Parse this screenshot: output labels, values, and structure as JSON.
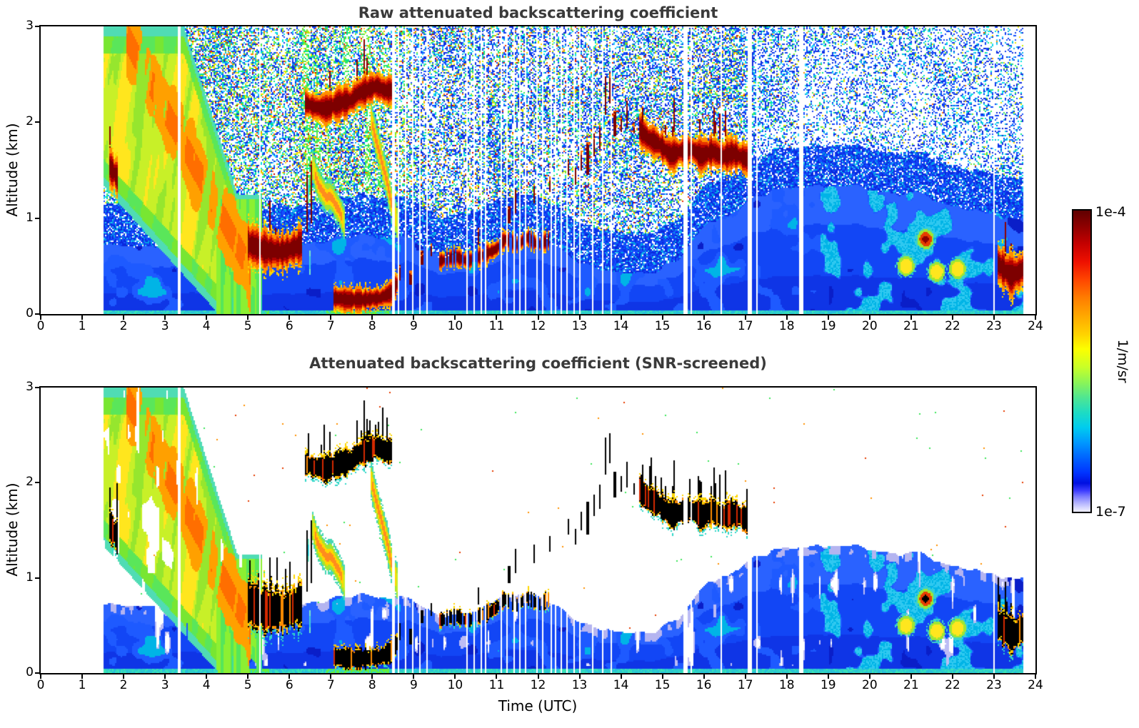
{
  "figure": {
    "background": "#ffffff",
    "title_color": "#3a3a3a",
    "colorbar": {
      "label_top": "1e-4",
      "label_bottom": "1e-7",
      "units_label": "1/m/sr",
      "gradient_stops": [
        [
          0,
          "#600000"
        ],
        [
          5,
          "#8b0000"
        ],
        [
          11,
          "#c40000"
        ],
        [
          17,
          "#ee1000"
        ],
        [
          23,
          "#ff4600"
        ],
        [
          29,
          "#ff7d00"
        ],
        [
          35,
          "#ffa800"
        ],
        [
          41,
          "#ffd200"
        ],
        [
          46,
          "#fcff00"
        ],
        [
          52,
          "#c8ff28"
        ],
        [
          57,
          "#8cf556"
        ],
        [
          62,
          "#50e691"
        ],
        [
          67,
          "#1edcc3"
        ],
        [
          72,
          "#00ccee"
        ],
        [
          77,
          "#0098ff"
        ],
        [
          82,
          "#0064ff"
        ],
        [
          87,
          "#0034ff"
        ],
        [
          90.5,
          "#0010e0"
        ],
        [
          93,
          "#3c3cff"
        ],
        [
          95,
          "#7d7dff"
        ],
        [
          97,
          "#b0b0ff"
        ],
        [
          98.7,
          "#d7d7ff"
        ],
        [
          100,
          "#efefff"
        ]
      ]
    }
  },
  "chart_data": [
    {
      "type": "heatmap",
      "title": "Raw attenuated backscattering coefficient",
      "xlabel": "",
      "ylabel": "Altitude (km)",
      "xlim": [
        0,
        24
      ],
      "ylim": [
        0,
        3
      ],
      "xtick_labels": [
        "0",
        "1",
        "2",
        "3",
        "4",
        "5",
        "6",
        "7",
        "8",
        "9",
        "10",
        "11",
        "12",
        "13",
        "14",
        "15",
        "16",
        "17",
        "18",
        "19",
        "20",
        "21",
        "22",
        "23",
        "24"
      ],
      "ytick_labels": [
        "0",
        "1",
        "2",
        "3"
      ],
      "colorbar_min": "1e-7",
      "colorbar_max": "1e-4",
      "colorbar_units": "1/m/sr",
      "screened": false,
      "features": {
        "time_range": [
          1.52,
          23.7
        ],
        "boundary_layer_top_km": [
          [
            1.5,
            0.72
          ],
          [
            3,
            0.7
          ],
          [
            4,
            0.76
          ],
          [
            5,
            0.72
          ],
          [
            6,
            0.7
          ],
          [
            7,
            0.76
          ],
          [
            8,
            0.82
          ],
          [
            9,
            0.78
          ],
          [
            9.6,
            0.6
          ],
          [
            10.5,
            0.66
          ],
          [
            11.2,
            0.8
          ],
          [
            12,
            0.8
          ],
          [
            12.5,
            0.68
          ],
          [
            13,
            0.52
          ],
          [
            13.6,
            0.44
          ],
          [
            14.6,
            0.44
          ],
          [
            15.4,
            0.55
          ],
          [
            16,
            0.9
          ],
          [
            16.6,
            1.05
          ],
          [
            17.2,
            1.2
          ],
          [
            18,
            1.32
          ],
          [
            19,
            1.35
          ],
          [
            20,
            1.3
          ],
          [
            21,
            1.25
          ],
          [
            22,
            1.15
          ],
          [
            23,
            1.05
          ],
          [
            23.7,
            1.0
          ]
        ],
        "clouds": [
          {
            "name": "stratus-patch-1.7h",
            "path": [
              [
                1.66,
                1.54
              ],
              [
                1.78,
                1.47
              ],
              [
                1.86,
                1.42
              ]
            ],
            "thickness_km": 0.17
          },
          {
            "name": "cloud-base-5-6h",
            "path": [
              [
                4.98,
                0.74
              ],
              [
                5.2,
                0.7
              ],
              [
                5.5,
                0.66
              ],
              [
                5.85,
                0.65
              ],
              [
                6.1,
                0.69
              ],
              [
                6.32,
                0.73
              ]
            ],
            "thickness_km": 0.17
          },
          {
            "name": "cloud-2.2km-6.4-8.5h",
            "path": [
              [
                6.38,
                2.2
              ],
              [
                6.6,
                2.16
              ],
              [
                6.9,
                2.14
              ],
              [
                7.2,
                2.2
              ],
              [
                7.5,
                2.23
              ],
              [
                7.65,
                2.3
              ],
              [
                7.85,
                2.33
              ],
              [
                8.1,
                2.38
              ],
              [
                8.3,
                2.33
              ],
              [
                8.55,
                2.34
              ]
            ],
            "thickness_km": 0.13
          },
          {
            "name": "low-cloud-7-8.5h",
            "path": [
              [
                7.05,
                0.17
              ],
              [
                7.4,
                0.15
              ],
              [
                7.8,
                0.15
              ],
              [
                8.2,
                0.17
              ],
              [
                8.45,
                0.22
              ],
              [
                8.62,
                0.33
              ]
            ],
            "thickness_km": 0.1
          },
          {
            "name": "rising-boundary-10-12h",
            "path": [
              [
                9.62,
                0.55
              ],
              [
                10,
                0.6
              ],
              [
                10.3,
                0.55
              ],
              [
                10.7,
                0.62
              ],
              [
                11,
                0.68
              ],
              [
                11.2,
                0.78
              ],
              [
                11.5,
                0.72
              ],
              [
                11.75,
                0.8
              ],
              [
                12,
                0.72
              ],
              [
                12.3,
                0.78
              ]
            ],
            "thickness_km": 0.08,
            "dashed": true
          },
          {
            "name": "cloud-1.7km-14.5-17h",
            "path": [
              [
                14.45,
                1.93
              ],
              [
                14.65,
                1.83
              ],
              [
                14.9,
                1.78
              ],
              [
                15.2,
                1.66
              ],
              [
                15.45,
                1.7
              ],
              [
                15.7,
                1.72
              ],
              [
                15.95,
                1.65
              ],
              [
                16.2,
                1.7
              ],
              [
                16.45,
                1.64
              ],
              [
                16.7,
                1.68
              ],
              [
                16.95,
                1.63
              ],
              [
                17.08,
                1.6
              ]
            ],
            "thickness_km": 0.14
          },
          {
            "name": "cloud-0.5km-23h",
            "path": [
              [
                23.08,
                0.53
              ],
              [
                23.25,
                0.46
              ],
              [
                23.42,
                0.4
              ],
              [
                23.58,
                0.43
              ],
              [
                23.7,
                0.47
              ]
            ],
            "thickness_km": 0.17
          }
        ],
        "virga_streaks": [
          {
            "from": [
              6.55,
              1.5
            ],
            "to": [
              7.35,
              0.95
            ],
            "width_km": 0.16
          },
          {
            "from": [
              7.95,
              2.05
            ],
            "to": [
              8.6,
              0.98
            ],
            "width_km": 0.18
          },
          {
            "from": [
              6.45,
              1.5
            ],
            "to": [
              6.52,
              0.05
            ],
            "width_km": 0.12,
            "cyan": true
          }
        ],
        "cloud_dashes": [
          [
            6.42,
            0.85,
            1.5
          ],
          [
            6.52,
            0.95,
            1.6
          ],
          [
            8.66,
            0.35,
            0.52
          ],
          [
            8.92,
            0.3,
            0.46
          ],
          [
            9.2,
            0.52,
            0.66
          ],
          [
            9.42,
            0.6,
            0.74
          ],
          [
            10.55,
            0.72,
            0.9
          ],
          [
            11.3,
            0.95,
            1.12
          ],
          [
            11.45,
            1.05,
            1.3
          ],
          [
            11.7,
            1.1,
            1.26
          ],
          [
            11.9,
            1.15,
            1.35
          ],
          [
            12.1,
            1.2,
            1.33
          ],
          [
            12.28,
            1.28,
            1.44
          ],
          [
            12.55,
            1.3,
            1.52
          ],
          [
            12.72,
            1.45,
            1.62
          ],
          [
            12.9,
            1.35,
            1.52
          ],
          [
            13.05,
            1.5,
            1.7
          ],
          [
            13.2,
            1.45,
            1.8
          ],
          [
            13.35,
            1.65,
            1.88
          ],
          [
            13.5,
            1.72,
            1.98
          ],
          [
            13.62,
            2.08,
            2.48
          ],
          [
            13.73,
            2.2,
            2.52
          ],
          [
            13.85,
            1.85,
            2.12
          ],
          [
            14.0,
            1.9,
            2.07
          ],
          [
            14.15,
            1.95,
            2.22
          ],
          [
            14.32,
            1.88,
            2.0
          ],
          [
            14.52,
            2.0,
            2.16
          ]
        ],
        "bl_spots": [
          {
            "t": 20.88,
            "z": 0.5,
            "color": "yellow"
          },
          {
            "t": 21.35,
            "z": 0.78,
            "color": "red"
          },
          {
            "t": 21.62,
            "z": 0.44,
            "color": "yellow"
          },
          {
            "t": 22.12,
            "z": 0.47,
            "color": "yellow"
          }
        ],
        "plume": {
          "t_range": [
            1.52,
            5.35
          ],
          "top_flat_km": 3.0,
          "descent_start_h": 3.45,
          "descent_rate_km_per_h": 1.35,
          "base_line": [
            [
              1.55,
              1.32
            ],
            [
              4.3,
              0
            ]
          ],
          "core_line": [
            [
              2.3,
              2.7
            ],
            [
              4.7,
              0.75
            ]
          ],
          "ground_shaft_t": [
            4.25,
            5.35
          ]
        },
        "gap_columns": [
          [
            3.35,
            0.05
          ],
          [
            5.3,
            0.04
          ],
          [
            8.52,
            0.07
          ],
          [
            8.64,
            0.03
          ],
          [
            8.8,
            0.04
          ],
          [
            8.97,
            0.05
          ],
          [
            9.16,
            0.03
          ],
          [
            9.31,
            0.03
          ],
          [
            10.28,
            0.05
          ],
          [
            10.46,
            0.03
          ],
          [
            10.63,
            0.03
          ],
          [
            10.74,
            0.02
          ],
          [
            11.1,
            0.03
          ],
          [
            11.26,
            0.03
          ],
          [
            11.41,
            0.04
          ],
          [
            11.56,
            0.03
          ],
          [
            11.69,
            0.02
          ],
          [
            11.96,
            0.03
          ],
          [
            12.11,
            0.02
          ],
          [
            12.31,
            0.03
          ],
          [
            12.43,
            0.02
          ],
          [
            12.56,
            0.03
          ],
          [
            12.71,
            0.04
          ],
          [
            12.86,
            0.03
          ],
          [
            13.01,
            0.02
          ],
          [
            13.31,
            0.03
          ],
          [
            13.56,
            0.02
          ],
          [
            13.77,
            0.02
          ],
          [
            14.92,
            0.03
          ],
          [
            15.02,
            0.02
          ],
          [
            15.56,
            0.09
          ],
          [
            15.7,
            0.03
          ],
          [
            16.41,
            0.02
          ],
          [
            17.12,
            0.11
          ],
          [
            17.27,
            0.03
          ],
          [
            18.36,
            0.11
          ],
          [
            21.16,
            0.02
          ],
          [
            23.01,
            0.02
          ]
        ]
      }
    },
    {
      "type": "heatmap",
      "title": "Attenuated backscattering coefficient (SNR-screened)",
      "xlabel": "Time (UTC)",
      "ylabel": "Altitude (km)",
      "xlim": [
        0,
        24
      ],
      "ylim": [
        0,
        3
      ],
      "xtick_labels": [
        "0",
        "1",
        "2",
        "3",
        "4",
        "5",
        "6",
        "7",
        "8",
        "9",
        "10",
        "11",
        "12",
        "13",
        "14",
        "15",
        "16",
        "17",
        "18",
        "19",
        "20",
        "21",
        "22",
        "23",
        "24"
      ],
      "ytick_labels": [
        "0",
        "1",
        "2",
        "3"
      ],
      "colorbar_min": "1e-7",
      "colorbar_max": "1e-4",
      "colorbar_units": "1/m/sr",
      "screened": true,
      "features": "same_as_raw_panel",
      "screened_rendering": {
        "saturated_cloud_color": "#000000",
        "below_threshold": "white",
        "threshold_edge_color": "#bcbcf5"
      }
    }
  ],
  "render_palette": {
    "speckle_blue": [
      "#0a28dc",
      "#0f3cf0",
      "#1450ff"
    ],
    "speckle_cyan": [
      "#00b4e6",
      "#00e0e0",
      "#28d2ff"
    ],
    "speckle_green": [
      "#3ce65a",
      "#78e632",
      "#00e68c"
    ],
    "speckle_yellow": [
      "#e6e600",
      "#ffdc00",
      "#c8f000"
    ],
    "speckle_orange": [
      "#ff9100",
      "#ff6e00"
    ],
    "speckle_red": [
      "#e62800",
      "#c80000"
    ],
    "cloud_core_raw": "#7d0000",
    "black": "#000000",
    "lavender": "#bcbcf5"
  }
}
